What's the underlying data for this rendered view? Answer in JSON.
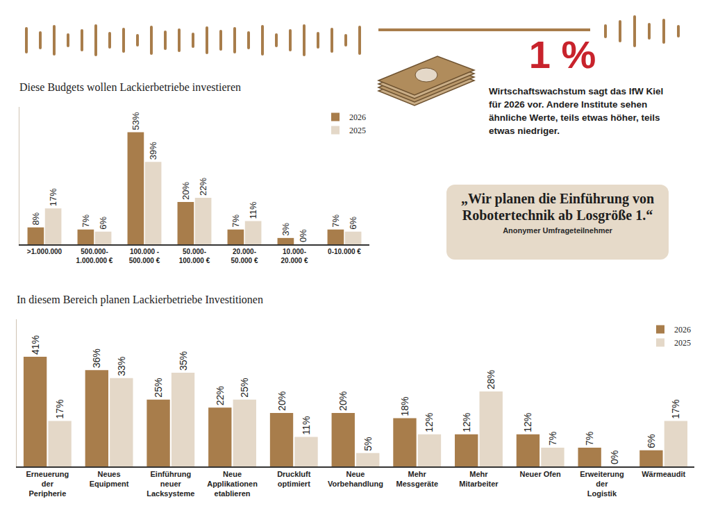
{
  "chart_data": [
    {
      "type": "bar",
      "title": "Diese Budgets wollen Lackierbetriebe investieren",
      "categories": [
        ">1.000.000",
        "500.000-1.000.000 €",
        "100.000 - 500.000 €",
        "50.000-100.000 €",
        "20.000-50.000 €",
        "10.000-20.000 €",
        "0-10.000 €"
      ],
      "series": [
        {
          "name": "2026",
          "color": "#a87d4b",
          "values": [
            8,
            7,
            53,
            20,
            7,
            3,
            7
          ],
          "value_labels": [
            "8%",
            "7%",
            "53%",
            "20%",
            "7%",
            "3%",
            "7%"
          ]
        },
        {
          "name": "2025",
          "color": "#e4d8c8",
          "values": [
            17,
            6,
            39,
            22,
            11,
            0,
            6
          ],
          "value_labels": [
            "17%",
            "6%",
            "39%",
            "22%",
            "11%",
            "0%",
            "6%"
          ]
        }
      ],
      "ylim": [
        0,
        65
      ],
      "tick_labels": "x",
      "grid": false,
      "legend": "upper right",
      "data_labels": true
    },
    {
      "type": "bar",
      "title": "In diesem Bereich planen Lackierbetriebe Investitionen",
      "categories": [
        "Erneuerung der Peripherie",
        "Neues Equipment",
        "Einführung neuer Lacksysteme",
        "Neue Applikationen etablieren",
        "Druckluft optimiert",
        "Neue Vorbehandlung",
        "Mehr Messgeräte",
        "Mehr Mitarbeiter",
        "Neuer Ofen",
        "Erweiterung der Logistik",
        "Wärmeaudit"
      ],
      "series": [
        {
          "name": "2026",
          "color": "#a87d4b",
          "values": [
            41,
            36,
            25,
            22,
            20,
            20,
            18,
            12,
            12,
            7,
            6
          ],
          "value_labels": [
            "41%",
            "36%",
            "25%",
            "22%",
            "20%",
            "20%",
            "18%",
            "12%",
            "12%",
            "7%",
            "6%"
          ]
        },
        {
          "name": "2025",
          "color": "#e4d8c8",
          "values": [
            17,
            33,
            35,
            25,
            11,
            5,
            12,
            28,
            7,
            0,
            17
          ],
          "value_labels": [
            "17%",
            "33%",
            "35%",
            "25%",
            "11%",
            "5%",
            "12%",
            "28%",
            "7%",
            "0%",
            "17%"
          ]
        }
      ],
      "ylim": [
        0,
        55
      ],
      "tick_labels": "x",
      "grid": false,
      "legend": "upper right",
      "data_labels": true
    }
  ],
  "callout": {
    "headline": "1 %",
    "text": "Wirtschaftswachstum sagt das IfW Kiel für 2026 vor. Andere Institute sehen ähnliche Werte, teils etwas höher, teils etwas niedriger."
  },
  "quote": {
    "text": "„Wir planen die Einführung von Robotertechnik ab Losgröße 1.“",
    "source": "Anonymer Umfrageteilnehmer"
  }
}
